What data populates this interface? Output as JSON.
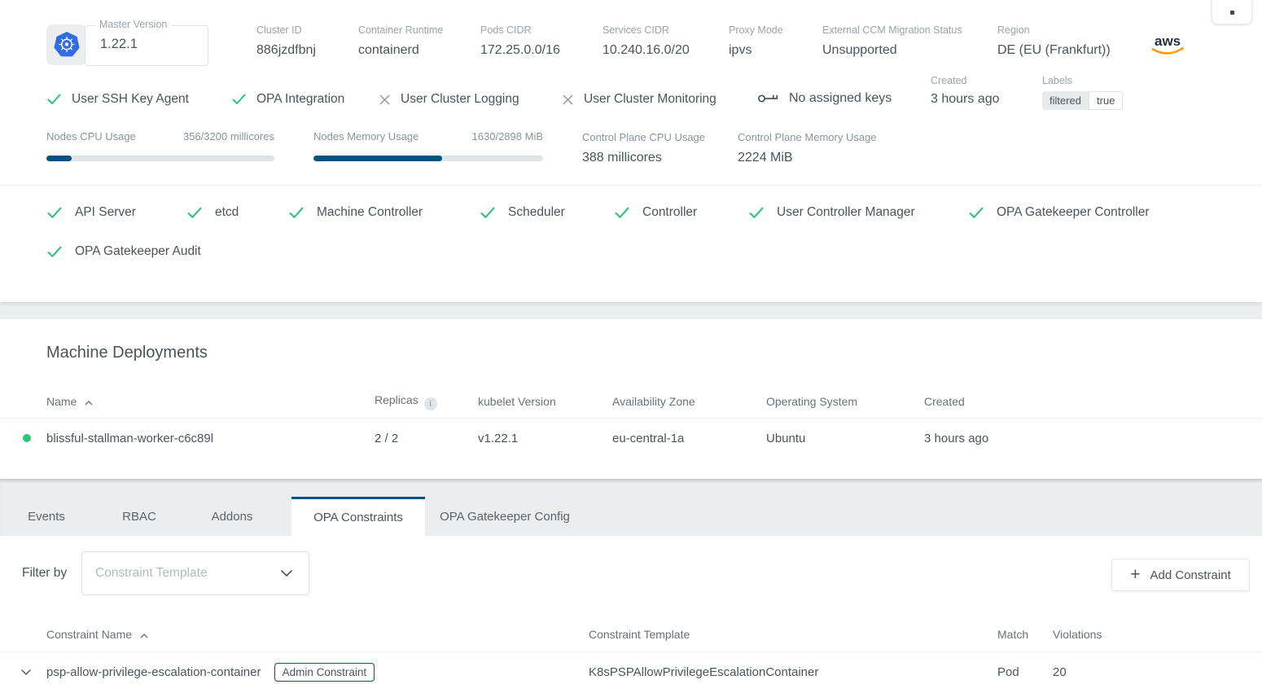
{
  "colors": {
    "accent": "#00517d",
    "success_green": "#2cc577",
    "muted_gray": "#9aa3ab",
    "text": "#4a545c",
    "k8s_blue": "#326ce5",
    "aws_orange": "#ff9900",
    "aws_navy": "#232f3e"
  },
  "top": {
    "master_version": {
      "label": "Master Version",
      "value": "1.22.1"
    },
    "stats": [
      {
        "label": "Cluster ID",
        "value": "886jzdfbnj"
      },
      {
        "label": "Container Runtime",
        "value": "containerd"
      },
      {
        "label": "Pods CIDR",
        "value": "172.25.0.0/16"
      },
      {
        "label": "Services CIDR",
        "value": "10.240.16.0/20"
      },
      {
        "label": "Proxy Mode",
        "value": "ipvs"
      },
      {
        "label": "External CCM Migration Status",
        "value": "Unsupported"
      },
      {
        "label": "Region",
        "value": "DE (EU (Frankfurt))"
      }
    ],
    "provider": "aws",
    "features": [
      {
        "label": "User SSH Key Agent",
        "enabled": true
      },
      {
        "label": "OPA Integration",
        "enabled": true
      },
      {
        "label": "User Cluster Logging",
        "enabled": false
      },
      {
        "label": "User Cluster Monitoring",
        "enabled": false
      }
    ],
    "ssh_keys_text": "No assigned keys",
    "created": {
      "label": "Created",
      "value": "3 hours ago"
    },
    "labels_chip": {
      "label": "Labels",
      "key": "filtered",
      "value": "true"
    },
    "usage_bars": [
      {
        "label": "Nodes CPU Usage",
        "value": "356/3200 millicores",
        "percent": 11.1
      },
      {
        "label": "Nodes Memory Usage",
        "value": "1630/2898 MiB",
        "percent": 56.2
      }
    ],
    "control_plane": [
      {
        "label": "Control Plane CPU Usage",
        "value": "388 millicores"
      },
      {
        "label": "Control Plane Memory Usage",
        "value": "2224 MiB"
      }
    ],
    "health": [
      "API Server",
      "etcd",
      "Machine Controller",
      "Scheduler",
      "Controller",
      "User Controller Manager",
      "OPA Gatekeeper Controller",
      "OPA Gatekeeper Audit"
    ]
  },
  "machine_deployments": {
    "title": "Machine Deployments",
    "columns": {
      "name": "Name",
      "replicas": "Replicas",
      "kubelet": "kubelet Version",
      "zone": "Availability Zone",
      "os": "Operating System",
      "created": "Created"
    },
    "rows": [
      {
        "name": "blissful-stallman-worker-c6c89l",
        "replicas": "2 / 2",
        "kubelet": "v1.22.1",
        "zone": "eu-central-1a",
        "os": "Ubuntu",
        "created": "3 hours ago",
        "status": "running"
      }
    ]
  },
  "tabs": [
    {
      "label": "Events",
      "active": false
    },
    {
      "label": "RBAC",
      "active": false
    },
    {
      "label": "Addons",
      "active": false
    },
    {
      "label": "OPA Constraints",
      "active": true
    },
    {
      "label": "OPA Gatekeeper Config",
      "active": false
    }
  ],
  "constraints": {
    "filter_label": "Filter by",
    "filter_placeholder": "Constraint Template",
    "add_button_label": "Add Constraint",
    "columns": {
      "name": "Constraint Name",
      "template": "Constraint Template",
      "match": "Match",
      "violations": "Violations"
    },
    "rows": [
      {
        "name": "psp-allow-privilege-escalation-container",
        "badge": "Admin Constraint",
        "template": "K8sPSPAllowPrivilegeEscalationContainer",
        "match": "Pod",
        "violations": "20"
      }
    ]
  }
}
